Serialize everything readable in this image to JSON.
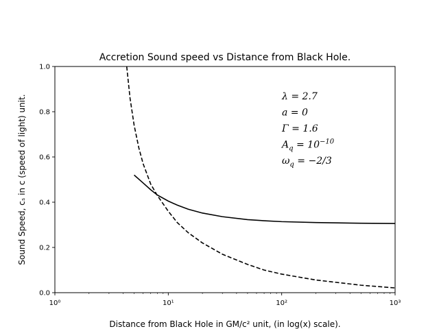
{
  "chart_data": {
    "type": "line",
    "title": "Accretion Sound speed vs Distance from Black Hole.",
    "xlabel": "Distance from Black Hole in GM/c² unit, (in log(x) scale).",
    "ylabel": "Sound Speed, cₛ in c (speed of light) unit.",
    "xscale": "log",
    "xlim": [
      1,
      1000
    ],
    "ylim": [
      0.0,
      1.0
    ],
    "x_ticks": [
      {
        "value": 1,
        "label": "10⁰"
      },
      {
        "value": 10,
        "label": "10¹"
      },
      {
        "value": 100,
        "label": "10²"
      },
      {
        "value": 1000,
        "label": "10³"
      }
    ],
    "y_ticks": [
      {
        "value": 0.0,
        "label": "0.0"
      },
      {
        "value": 0.2,
        "label": "0.2"
      },
      {
        "value": 0.4,
        "label": "0.4"
      },
      {
        "value": 0.6,
        "label": "0.6"
      },
      {
        "value": 0.8,
        "label": "0.8"
      },
      {
        "value": 1.0,
        "label": "1.0"
      }
    ],
    "grid": false,
    "series": [
      {
        "style": "solid",
        "color": "#000000",
        "x": [
          5.0,
          6.0,
          7.0,
          8.0,
          10.0,
          12.0,
          15.0,
          20.0,
          30.0,
          50.0,
          70.0,
          100.0,
          200.0,
          500.0,
          1000.0
        ],
        "y": [
          0.52,
          0.485,
          0.455,
          0.432,
          0.405,
          0.387,
          0.369,
          0.352,
          0.336,
          0.323,
          0.318,
          0.314,
          0.31,
          0.307,
          0.306
        ]
      },
      {
        "style": "dashed",
        "color": "#000000",
        "x": [
          4.3,
          4.6,
          5.0,
          5.5,
          6.0,
          7.0,
          8.0,
          10.0,
          12.0,
          15.0,
          20.0,
          30.0,
          50.0,
          70.0,
          100.0,
          200.0,
          500.0,
          1000.0
        ],
        "y": [
          1.0,
          0.86,
          0.74,
          0.64,
          0.57,
          0.48,
          0.43,
          0.36,
          0.31,
          0.265,
          0.22,
          0.17,
          0.125,
          0.1,
          0.082,
          0.056,
          0.033,
          0.021
        ]
      }
    ],
    "annotations": [
      {
        "text": "λ = 2.7"
      },
      {
        "text": "a = 0"
      },
      {
        "text": "Γ = 1.6"
      },
      {
        "text": "A",
        "sub": "q",
        "mid": " = 10",
        "sup": "−10"
      },
      {
        "text": "ω",
        "sub": "q",
        "mid": " = −2/3",
        "sup": ""
      }
    ]
  }
}
